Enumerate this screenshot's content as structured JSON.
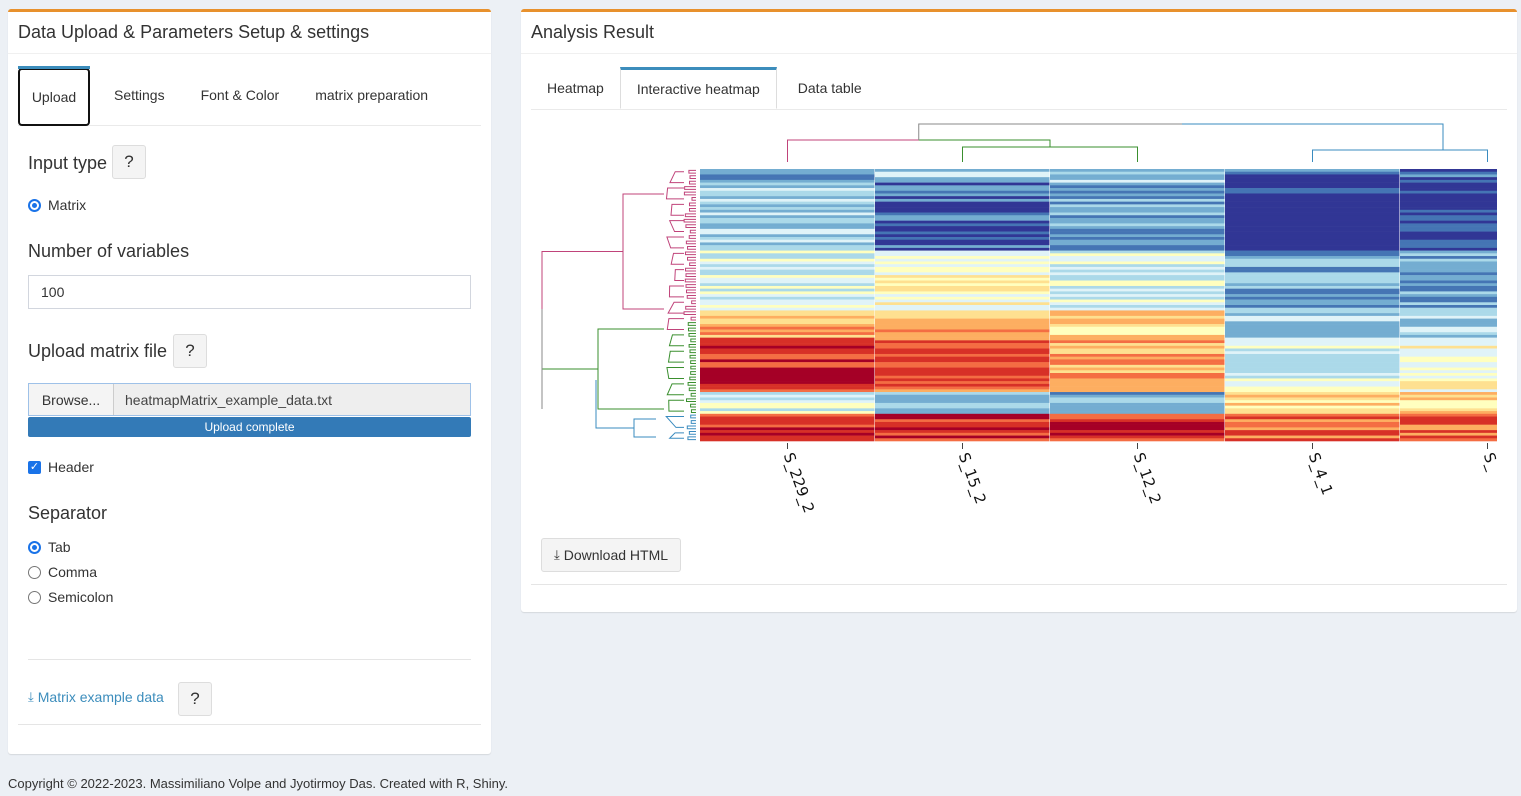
{
  "left_panel": {
    "title": "Data Upload & Parameters Setup & settings",
    "tabs": [
      {
        "label": "Upload",
        "active": true
      },
      {
        "label": "Settings",
        "active": false
      },
      {
        "label": "Font & Color",
        "active": false
      },
      {
        "label": "matrix preparation",
        "active": false
      }
    ],
    "input_type": {
      "label": "Input type",
      "help": "?",
      "options": [
        {
          "label": "Matrix",
          "selected": true
        }
      ]
    },
    "num_variables": {
      "label": "Number of variables",
      "value": "100"
    },
    "upload": {
      "label": "Upload matrix file",
      "help": "?",
      "browse_label": "Browse...",
      "file_name": "heatmapMatrix_example_data.txt",
      "progress_text": "Upload complete",
      "progress_percent": 100
    },
    "header_checkbox": {
      "label": "Header",
      "checked": true
    },
    "separator": {
      "label": "Separator",
      "options": [
        {
          "label": "Tab",
          "selected": true
        },
        {
          "label": "Comma",
          "selected": false
        },
        {
          "label": "Semicolon",
          "selected": false
        }
      ]
    },
    "example_link": {
      "label": "Matrix example data",
      "icon": "download-icon",
      "help": "?"
    }
  },
  "right_panel": {
    "title": "Analysis Result",
    "tabs": [
      {
        "label": "Heatmap",
        "active": false
      },
      {
        "label": "Interactive heatmap",
        "active": true
      },
      {
        "label": "Data table",
        "active": false
      }
    ],
    "heatmap": {
      "columns": [
        "S_229_2",
        "S_15_2",
        "S_12_2",
        "S_4_1",
        "S_"
      ],
      "palette": [
        "#313695",
        "#4575b4",
        "#74add1",
        "#abd9e9",
        "#e0f3f8",
        "#ffffbf",
        "#fee090",
        "#fdae61",
        "#f46d43",
        "#d73027",
        "#a50026"
      ],
      "dendrogram_colors": [
        "#c0437a",
        "#3a8f2e",
        "#3a8bbf",
        "#888888"
      ]
    },
    "download_button": {
      "label": "Download HTML",
      "icon": "download-icon"
    }
  },
  "footer": {
    "text": "Copyright © 2022-2023. Massimiliano Volpe and Jyotirmoy Das. Created with R, Shiny."
  }
}
